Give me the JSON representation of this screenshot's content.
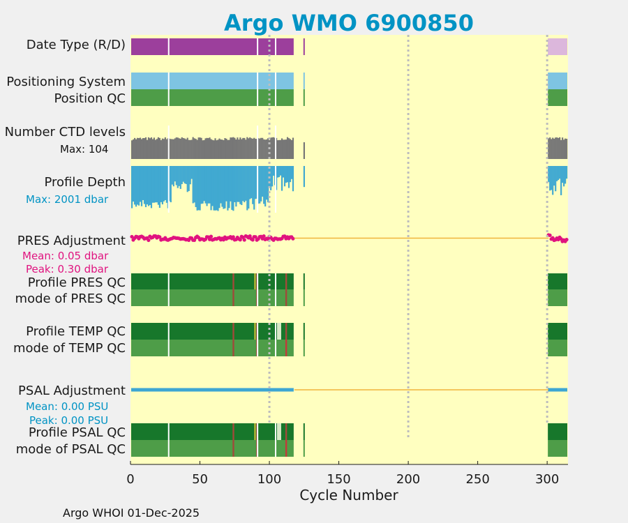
{
  "title": "Argo WMO 6900850",
  "footer": "Argo WHOI 01-Dec-2025",
  "colors": {
    "background": "#f0f0f0",
    "plot_bg": "#ffffc0",
    "title": "#0093c4",
    "date_real": "#9c3f9c",
    "date_delayed": "#dcb7dc",
    "positioning": "#7ec4e2",
    "qc_good": "#4e9d48",
    "qc_profile_good": "#17772b",
    "qc_probably_bad": "#a04a3a",
    "qc_bad": "#c23a3a",
    "qc_probably_good": "#d7e8c8",
    "yellow_flag": "#e7c93a",
    "ctd_levels": "#777777",
    "profile_depth": "#41a9d1",
    "pres_adjustment": "#e0137f",
    "psal_adjustment": "#3da6d3",
    "zero_line": "#f0b43c",
    "guide_line": "#bdbdbd"
  },
  "chart_data": {
    "type": "table",
    "title": "Argo WMO 6900850",
    "xlabel": "Cycle Number",
    "xlim": [
      0,
      315
    ],
    "xticks": [
      0,
      50,
      100,
      150,
      200,
      250,
      300
    ],
    "xtick_labels": [
      "0",
      "50",
      "100",
      "150",
      "200",
      "250",
      "300"
    ],
    "guide_cycles": [
      100,
      200,
      300
    ],
    "segments": [
      {
        "start": 1,
        "end": 117,
        "mode": "R"
      },
      {
        "start": 125,
        "end": 125,
        "mode": "R"
      },
      {
        "start": 301,
        "end": 314,
        "mode": "D"
      }
    ],
    "gaps": [
      27,
      91,
      104
    ],
    "rows": {
      "date_type": {
        "label": "Date Type (R/D)"
      },
      "positioning_system": {
        "label": "Positioning System"
      },
      "position_qc": {
        "label": "Position QC"
      },
      "ctd_levels": {
        "label": "Number CTD levels",
        "annotation": "Max: 104",
        "max": 104,
        "typical_range": [
          58,
          68
        ]
      },
      "profile_depth": {
        "label": "Profile Depth",
        "annotation": "Max: 2001 dbar",
        "max_dbar": 2001,
        "unit": "dbar"
      },
      "pres_adjustment": {
        "label": "PRES Adjustment",
        "mean_label": "Mean: 0.05 dbar",
        "peak_label": "Peak: 0.30 dbar",
        "mean": 0.05,
        "peak": 0.3,
        "unit": "dbar"
      },
      "profile_pres_qc": {
        "label": "Profile PRES QC",
        "marks": [
          {
            "cycle": 74,
            "flag": "B"
          },
          {
            "cycle": 91,
            "flag": "B"
          },
          {
            "cycle": 112,
            "flag": "B"
          }
        ]
      },
      "mode_pres_qc": {
        "label": "mode of PRES QC",
        "marks": [
          {
            "cycle": 74,
            "flag": "3"
          },
          {
            "cycle": 91,
            "flag": "3"
          },
          {
            "cycle": 112,
            "flag": "3"
          }
        ]
      },
      "profile_temp_qc": {
        "label": "Profile TEMP QC",
        "marks": [
          {
            "cycle": 74,
            "flag": "B"
          },
          {
            "cycle": 91,
            "flag": "B"
          },
          {
            "cycle": 106,
            "flag": "C"
          },
          {
            "cycle": 112,
            "flag": "B"
          }
        ]
      },
      "mode_temp_qc": {
        "label": "mode of TEMP QC",
        "marks": [
          {
            "cycle": 74,
            "flag": "3"
          },
          {
            "cycle": 91,
            "flag": "3"
          },
          {
            "cycle": 112,
            "flag": "4"
          }
        ]
      },
      "psal_adjustment": {
        "label": "PSAL Adjustment",
        "mean_label": "Mean: 0.00 PSU",
        "peak_label": "Peak: 0.00 PSU",
        "mean": 0.0,
        "peak": 0.0,
        "unit": "PSU"
      },
      "profile_psal_qc": {
        "label": "Profile PSAL QC",
        "marks": [
          {
            "cycle": 74,
            "flag": "B"
          },
          {
            "cycle": 91,
            "flag": "B"
          },
          {
            "cycle": 106,
            "flag": "C"
          },
          {
            "cycle": 112,
            "flag": "B"
          }
        ]
      },
      "mode_psal_qc": {
        "label": "mode of PSAL QC",
        "marks": [
          {
            "cycle": 74,
            "flag": "3"
          },
          {
            "cycle": 91,
            "flag": "3"
          },
          {
            "cycle": 112,
            "flag": "4"
          }
        ]
      }
    }
  }
}
